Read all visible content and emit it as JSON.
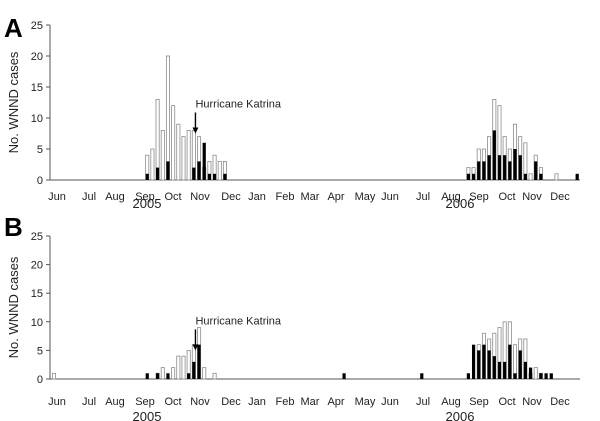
{
  "colors": {
    "closed_bar": "#000000",
    "open_bar_fill": "#ffffff",
    "open_bar_stroke": "#8c8c8c",
    "axis": "#555555"
  },
  "chart_data": [
    {
      "type": "bar",
      "panel": "A",
      "ylabel": "No. WNND cases",
      "ylim": [
        0,
        25
      ],
      "yticks": [
        0,
        5,
        10,
        15,
        20,
        25
      ],
      "xtick_labels": [
        "Jun",
        "Jul",
        "Aug",
        "Sep",
        "Oct",
        "Nov",
        "Dec",
        "Jan",
        "Feb",
        "Mar",
        "Apr",
        "May",
        "Jun",
        "Jul",
        "Aug",
        "Sep",
        "Oct",
        "Nov",
        "Dec"
      ],
      "year_labels": [
        "2005",
        "2006"
      ],
      "annotation": {
        "text": "Hurricane Katrina",
        "week": 27.5,
        "arrow_tip": 7.5
      },
      "series": [
        {
          "style": "open",
          "points": [
            [
              18,
              4
            ],
            [
              19,
              5
            ],
            [
              20,
              13
            ],
            [
              21,
              8
            ],
            [
              22,
              20
            ],
            [
              23,
              12
            ],
            [
              24,
              9
            ],
            [
              25,
              7
            ],
            [
              26,
              8
            ],
            [
              27,
              8
            ],
            [
              28,
              7
            ],
            [
              29,
              2
            ],
            [
              30,
              3
            ],
            [
              31,
              4
            ],
            [
              32,
              3
            ],
            [
              33,
              3
            ],
            [
              80,
              2
            ],
            [
              81,
              2
            ],
            [
              82,
              5
            ],
            [
              83,
              5
            ],
            [
              84,
              7
            ],
            [
              85,
              13
            ],
            [
              86,
              12
            ],
            [
              87,
              7
            ],
            [
              88,
              5
            ],
            [
              89,
              9
            ],
            [
              90,
              7
            ],
            [
              91,
              6
            ],
            [
              92,
              1
            ],
            [
              93,
              4
            ],
            [
              94,
              2
            ],
            [
              97,
              1
            ]
          ]
        },
        {
          "style": "filled",
          "points": [
            [
              18,
              1
            ],
            [
              20,
              2
            ],
            [
              22,
              3
            ],
            [
              27,
              2
            ],
            [
              28,
              3
            ],
            [
              29,
              6
            ],
            [
              30,
              1
            ],
            [
              31,
              1
            ],
            [
              33,
              1
            ],
            [
              80,
              1
            ],
            [
              81,
              1
            ],
            [
              82,
              3
            ],
            [
              83,
              3
            ],
            [
              84,
              4
            ],
            [
              85,
              8
            ],
            [
              86,
              4
            ],
            [
              87,
              4
            ],
            [
              88,
              3
            ],
            [
              89,
              5
            ],
            [
              90,
              4
            ],
            [
              91,
              1
            ],
            [
              93,
              3
            ],
            [
              94,
              1
            ],
            [
              101,
              1
            ]
          ]
        }
      ]
    },
    {
      "type": "bar",
      "panel": "B",
      "ylabel": "No. WNND cases",
      "ylim": [
        0,
        25
      ],
      "yticks": [
        0,
        5,
        10,
        15,
        20,
        25
      ],
      "xtick_labels": [
        "Jun",
        "Jul",
        "Aug",
        "Sep",
        "Oct",
        "Nov",
        "Dec",
        "Jan",
        "Feb",
        "Mar",
        "Apr",
        "May",
        "Jun",
        "Jul",
        "Aug",
        "Sep",
        "Oct",
        "Nov",
        "Dec"
      ],
      "year_labels": [
        "2005",
        "2006"
      ],
      "annotation": {
        "text": "Hurricane Katrina",
        "week": 27.5,
        "arrow_tip": 5
      },
      "series": [
        {
          "style": "open",
          "points": [
            [
              0,
              1
            ],
            [
              20,
              1
            ],
            [
              21,
              2
            ],
            [
              23,
              2
            ],
            [
              24,
              4
            ],
            [
              25,
              4
            ],
            [
              26,
              5
            ],
            [
              27,
              6
            ],
            [
              28,
              9
            ],
            [
              29,
              2
            ],
            [
              31,
              1
            ],
            [
              82,
              6
            ],
            [
              83,
              8
            ],
            [
              84,
              7
            ],
            [
              85,
              8
            ],
            [
              86,
              9
            ],
            [
              87,
              10
            ],
            [
              88,
              10
            ],
            [
              89,
              6
            ],
            [
              90,
              7
            ],
            [
              91,
              7
            ],
            [
              92,
              1
            ],
            [
              93,
              2
            ],
            [
              94,
              1
            ]
          ]
        },
        {
          "style": "filled",
          "points": [
            [
              18,
              1
            ],
            [
              20,
              1
            ],
            [
              22,
              1
            ],
            [
              26,
              1
            ],
            [
              27,
              3
            ],
            [
              28,
              6
            ],
            [
              35,
              0
            ],
            [
              56,
              1
            ],
            [
              71,
              1
            ],
            [
              80,
              1
            ],
            [
              81,
              6
            ],
            [
              82,
              5
            ],
            [
              83,
              6
            ],
            [
              84,
              5
            ],
            [
              85,
              4
            ],
            [
              86,
              3
            ],
            [
              87,
              3
            ],
            [
              88,
              6
            ],
            [
              89,
              1
            ],
            [
              90,
              5
            ],
            [
              91,
              3
            ],
            [
              92,
              2
            ],
            [
              94,
              1
            ],
            [
              95,
              1
            ],
            [
              96,
              1
            ]
          ]
        }
      ]
    }
  ]
}
